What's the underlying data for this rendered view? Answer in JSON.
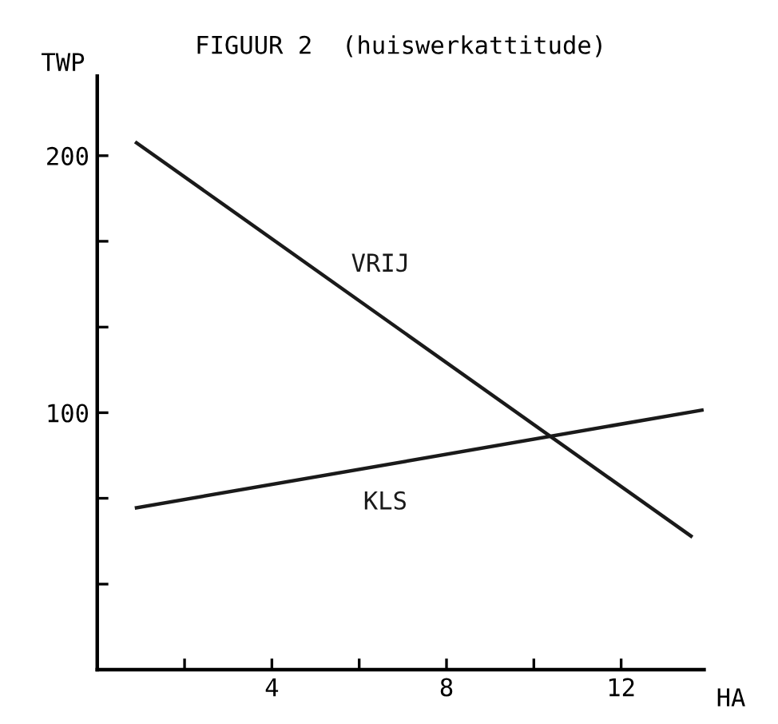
{
  "chart_data": {
    "type": "line",
    "title": "FIGUUR 2  (huiswerkattitude)",
    "xlabel": "HA",
    "ylabel": "TWP",
    "series": [
      {
        "name": "VRIJ",
        "color": "#1a1a1a",
        "x": [
          0.9,
          13.6
        ],
        "values": [
          205,
          52
        ]
      },
      {
        "name": "KLS",
        "color": "#1a1a1a",
        "x": [
          0.9,
          13.85
        ],
        "values": [
          63,
          101
        ]
      }
    ],
    "xlim": [
      0,
      13.9
    ],
    "ylim": [
      0,
      231
    ],
    "xticks": [
      {
        "value": 2,
        "label": null
      },
      4,
      {
        "value": 6,
        "label": null
      },
      8,
      {
        "value": 10,
        "label": null
      },
      12
    ],
    "yticks": [
      {
        "value": 33.3,
        "label": null
      },
      {
        "value": 66.7,
        "label": null
      },
      100,
      {
        "value": 133.3,
        "label": null
      },
      {
        "value": 166.7,
        "label": null
      },
      200
    ],
    "grid": false,
    "legend": false,
    "marker": "none",
    "line_style": "solid"
  }
}
